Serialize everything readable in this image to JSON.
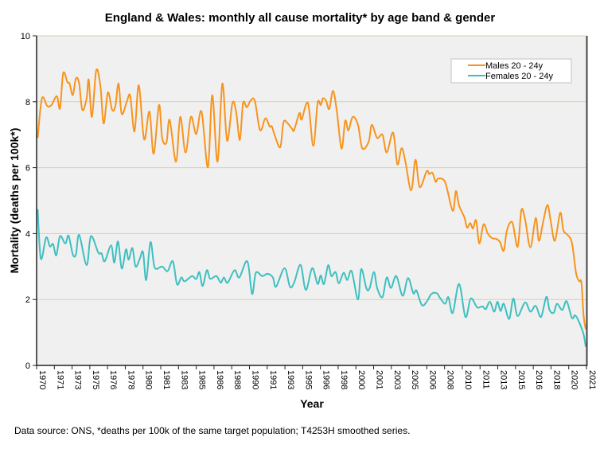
{
  "chart_data": {
    "type": "line",
    "title": "England & Wales: monthly all cause mortality* by age band & gender",
    "xlabel": "Year",
    "ylabel": "Mortality (deaths per 100k*)",
    "footnote": "Data source: ONS, *deaths per 100k of the same target population; T4253H smoothed series.",
    "xlim": [
      1970,
      2021.67
    ],
    "ylim": [
      0,
      10
    ],
    "yticks": [
      0,
      2,
      4,
      6,
      8,
      10
    ],
    "xtick_labels": [
      "1970",
      "1971",
      "1973",
      "1975",
      "1976",
      "1978",
      "1980",
      "1981",
      "1983",
      "1985",
      "1986",
      "1988",
      "1990",
      "1991",
      "1993",
      "1995",
      "1996",
      "1998",
      "2000",
      "2001",
      "2003",
      "2005",
      "2006",
      "2008",
      "2010",
      "2011",
      "2013",
      "2015",
      "2016",
      "2018",
      "2020",
      "2021"
    ],
    "grid": "horizontal",
    "legend_position": "top-right",
    "colors": {
      "males": "#f7941d",
      "females": "#3fbfbf",
      "grid": "#d9d2a6",
      "plot_bg": "#f0f0f0"
    },
    "series": [
      {
        "name": "Males 20 - 24y",
        "x": [
          1970.1,
          1970.5,
          1971.0,
          1971.4,
          1971.9,
          1972.2,
          1972.5,
          1972.9,
          1973.1,
          1973.4,
          1973.7,
          1974.0,
          1974.3,
          1974.7,
          1974.9,
          1975.2,
          1975.6,
          1976.0,
          1976.3,
          1976.7,
          1977.1,
          1977.4,
          1977.7,
          1978.0,
          1978.5,
          1978.8,
          1979.2,
          1979.6,
          1980.1,
          1980.6,
          1981.0,
          1981.5,
          1981.8,
          1982.2,
          1982.5,
          1983.1,
          1983.5,
          1984.0,
          1984.5,
          1985.0,
          1985.5,
          1986.1,
          1986.5,
          1987.0,
          1987.45,
          1987.9,
          1988.4,
          1988.75,
          1989.1,
          1989.4,
          1989.75,
          1990.1,
          1990.5,
          1991.0,
          1991.5,
          1991.9,
          1992.1,
          1992.4,
          1992.9,
          1993.2,
          1993.6,
          1994.0,
          1994.2,
          1994.7,
          1994.9,
          1995.5,
          1996.0,
          1996.4,
          1996.7,
          1996.9,
          1997.2,
          1997.5,
          1997.85,
          1998.2,
          1998.65,
          1999.0,
          1999.3,
          1999.7,
          2000.2,
          2000.6,
          2001.2,
          2001.5,
          2002.0,
          2002.5,
          2002.9,
          2003.5,
          2003.9,
          2004.3,
          2004.65,
          2005.2,
          2005.6,
          2006.0,
          2006.65,
          2006.9,
          2007.2,
          2007.5,
          2007.75,
          2008.4,
          2009.1,
          2009.4,
          2009.7,
          2010.2,
          2010.45,
          2010.75,
          2011.0,
          2011.3,
          2011.6,
          2012.0,
          2012.4,
          2012.8,
          2013.2,
          2013.55,
          2013.9,
          2014.2,
          2014.7,
          2015.2,
          2015.55,
          2015.9,
          2016.4,
          2016.9,
          2017.2,
          2017.6,
          2018.0,
          2018.3,
          2018.7,
          2019.2,
          2019.5,
          2019.9,
          2020.3,
          2020.7,
          2021.0,
          2021.2,
          2021.4,
          2021.6
        ],
        "y": [
          6.9,
          8.1,
          7.87,
          7.9,
          8.17,
          7.8,
          8.87,
          8.59,
          8.55,
          8.2,
          8.71,
          8.55,
          7.75,
          8.1,
          8.67,
          7.54,
          8.95,
          8.47,
          7.34,
          8.28,
          7.75,
          7.87,
          8.55,
          7.63,
          8.03,
          8.17,
          7.1,
          8.5,
          6.86,
          7.7,
          6.42,
          7.9,
          6.9,
          6.76,
          7.45,
          6.18,
          7.54,
          6.46,
          7.54,
          7.02,
          7.7,
          6.01,
          8.2,
          6.18,
          8.55,
          6.82,
          7.96,
          7.7,
          6.84,
          7.96,
          7.83,
          8.03,
          8.03,
          7.14,
          7.5,
          7.25,
          7.25,
          6.96,
          6.62,
          7.38,
          7.34,
          7.18,
          7.14,
          7.66,
          7.46,
          7.96,
          6.66,
          7.96,
          7.9,
          8.1,
          8.03,
          7.78,
          8.33,
          7.75,
          6.58,
          7.42,
          7.13,
          7.54,
          7.3,
          6.59,
          6.78,
          7.3,
          6.9,
          7.0,
          6.46,
          7.06,
          6.1,
          6.59,
          6.19,
          5.31,
          6.24,
          5.41,
          5.89,
          5.81,
          5.84,
          5.57,
          5.67,
          5.55,
          4.69,
          5.29,
          4.85,
          4.49,
          4.18,
          4.32,
          4.15,
          4.4,
          3.7,
          4.28,
          4.0,
          3.86,
          3.84,
          3.74,
          3.48,
          4.1,
          4.34,
          3.6,
          4.71,
          4.44,
          3.58,
          4.47,
          3.78,
          4.36,
          4.87,
          4.4,
          3.78,
          4.63,
          4.1,
          3.96,
          3.72,
          2.79,
          2.55,
          2.51,
          1.5,
          1.1
        ]
      },
      {
        "name": "Females 20 - 24y",
        "x": [
          1970.1,
          1970.4,
          1970.9,
          1971.25,
          1971.55,
          1971.85,
          1972.2,
          1972.7,
          1973.0,
          1973.4,
          1973.7,
          1974.0,
          1974.7,
          1975.1,
          1975.8,
          1976.1,
          1976.4,
          1977.0,
          1977.3,
          1977.65,
          1978.0,
          1978.4,
          1978.65,
          1979.0,
          1979.3,
          1979.7,
          1980.0,
          1980.3,
          1980.7,
          1981.1,
          1981.8,
          1982.3,
          1982.8,
          1983.2,
          1983.6,
          1983.9,
          1984.6,
          1985.0,
          1985.3,
          1985.6,
          1986.0,
          1986.3,
          1986.9,
          1987.3,
          1987.6,
          1987.95,
          1988.6,
          1989.05,
          1989.8,
          1990.25,
          1990.6,
          1991.2,
          1991.7,
          1992.2,
          1992.5,
          1993.3,
          1993.8,
          1994.2,
          1994.8,
          1995.3,
          1995.9,
          1996.4,
          1996.7,
          1997.0,
          1997.4,
          1997.7,
          1998.1,
          1998.4,
          1998.85,
          1999.2,
          1999.6,
          2000.2,
          2000.5,
          2001.0,
          2001.3,
          2001.7,
          2002.0,
          2002.5,
          2002.9,
          2003.3,
          2003.8,
          2004.4,
          2004.9,
          2005.4,
          2005.7,
          2006.2,
          2006.65,
          2007.1,
          2007.6,
          2007.95,
          2008.4,
          2008.7,
          2009.1,
          2009.7,
          2010.3,
          2010.8,
          2011.4,
          2011.9,
          2012.2,
          2012.6,
          2013.0,
          2013.3,
          2013.6,
          2013.9,
          2014.4,
          2014.8,
          2015.2,
          2015.9,
          2016.4,
          2016.9,
          2017.4,
          2017.9,
          2018.2,
          2018.6,
          2018.9,
          2019.4,
          2019.8,
          2020.3,
          2020.6,
          2021.0,
          2021.4,
          2021.6
        ],
        "y": [
          4.74,
          3.24,
          3.88,
          3.61,
          3.68,
          3.34,
          3.92,
          3.7,
          3.94,
          3.37,
          3.37,
          3.96,
          3.04,
          3.92,
          3.42,
          3.4,
          3.16,
          3.64,
          3.12,
          3.76,
          2.94,
          3.52,
          3.21,
          3.56,
          3.0,
          3.24,
          3.44,
          2.59,
          3.74,
          2.97,
          3.0,
          2.86,
          3.16,
          2.46,
          2.67,
          2.55,
          2.71,
          2.62,
          2.83,
          2.41,
          2.89,
          2.63,
          2.71,
          2.51,
          2.67,
          2.51,
          2.89,
          2.67,
          3.16,
          2.17,
          2.81,
          2.71,
          2.78,
          2.67,
          2.39,
          2.95,
          2.39,
          2.51,
          3.05,
          2.29,
          2.95,
          2.47,
          2.73,
          2.47,
          3.04,
          2.71,
          2.83,
          2.49,
          2.81,
          2.59,
          2.86,
          2.0,
          2.92,
          2.33,
          2.35,
          2.83,
          2.35,
          2.07,
          2.67,
          2.35,
          2.71,
          2.11,
          2.65,
          2.19,
          2.27,
          1.83,
          1.93,
          2.17,
          2.19,
          2.03,
          1.87,
          2.07,
          1.59,
          2.47,
          1.47,
          2.03,
          1.76,
          1.79,
          1.71,
          1.93,
          1.63,
          1.93,
          1.65,
          1.87,
          1.41,
          2.03,
          1.5,
          1.91,
          1.63,
          1.81,
          1.47,
          2.08,
          1.68,
          1.6,
          1.87,
          1.68,
          1.95,
          1.44,
          1.52,
          1.3,
          0.94,
          0.56
        ]
      }
    ]
  }
}
